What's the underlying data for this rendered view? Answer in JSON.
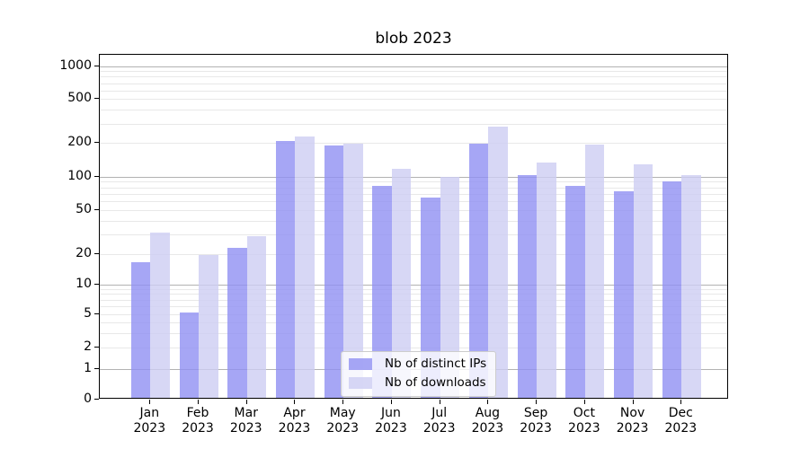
{
  "title": "blob 2023",
  "legend": {
    "items": [
      {
        "label": "Nb of distinct IPs",
        "color": "rgba(144,144,242,0.8)"
      },
      {
        "label": "Nb of downloads",
        "color": "rgba(205,205,242,0.8)"
      }
    ]
  },
  "chart_data": {
    "type": "bar",
    "title": "blob 2023",
    "categories": [
      "Jan",
      "Feb",
      "Mar",
      "Apr",
      "May",
      "Jun",
      "Jul",
      "Aug",
      "Sep",
      "Oct",
      "Nov",
      "Dec"
    ],
    "category_year": "2023",
    "series": [
      {
        "name": "Nb of distinct IPs",
        "color": "rgba(144,144,242,0.8)",
        "values": [
          16,
          5,
          22,
          202,
          183,
          79,
          62,
          190,
          100,
          79,
          71,
          87
        ]
      },
      {
        "name": "Nb of downloads",
        "color": "rgba(205,205,242,0.8)",
        "values": [
          30,
          19,
          28,
          220,
          190,
          113,
          96,
          270,
          128,
          188,
          125,
          100
        ]
      }
    ],
    "y_axis": {
      "scale": "symlog",
      "ticks": [
        0,
        1,
        2,
        5,
        10,
        20,
        50,
        100,
        200,
        500,
        1000
      ],
      "major_gridlines": [
        1,
        10,
        100,
        1000
      ],
      "minor_gridline_decades": [
        1,
        10,
        100
      ]
    },
    "xlabel": "",
    "ylabel": "",
    "grid": true,
    "legend_position": "lower center",
    "colors": {
      "major_grid": "#b2b2b2",
      "minor_grid": "#e8e8e8",
      "spine": "#000000"
    }
  }
}
